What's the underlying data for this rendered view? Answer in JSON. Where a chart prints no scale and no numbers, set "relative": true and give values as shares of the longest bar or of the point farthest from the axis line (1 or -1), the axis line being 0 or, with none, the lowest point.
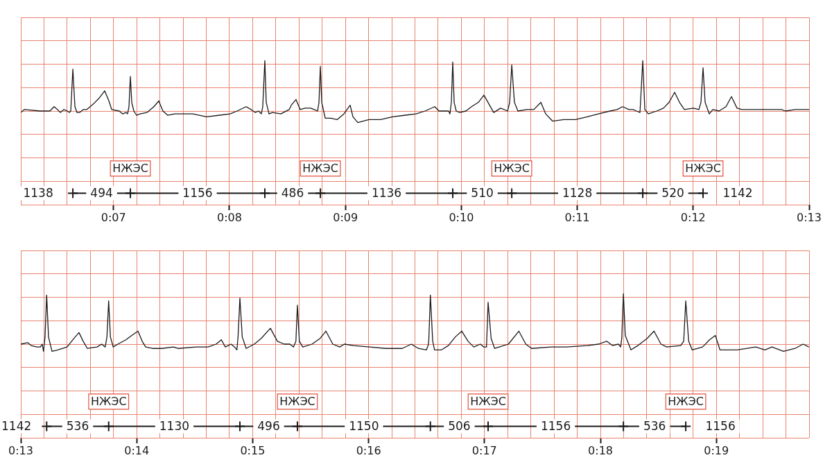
{
  "chart_data": [
    {
      "type": "line",
      "relative": true,
      "grid": true,
      "legend": false,
      "xlim": [
        6.2,
        13
      ],
      "xticks": [
        {
          "value": 6.2,
          "label": null
        },
        {
          "value": 6.4,
          "label": null
        },
        {
          "value": 6.6,
          "label": null
        },
        {
          "value": 6.8,
          "label": null
        },
        {
          "value": 7,
          "label": "0:07"
        },
        {
          "value": 7.2,
          "label": null
        },
        {
          "value": 7.4,
          "label": null
        },
        {
          "value": 7.6,
          "label": null
        },
        {
          "value": 7.8,
          "label": null
        },
        {
          "value": 8,
          "label": "0:08"
        },
        {
          "value": 8.2,
          "label": null
        },
        {
          "value": 8.4,
          "label": null
        },
        {
          "value": 8.6,
          "label": null
        },
        {
          "value": 8.8,
          "label": null
        },
        {
          "value": 9,
          "label": "0:09"
        },
        {
          "value": 9.2,
          "label": null
        },
        {
          "value": 9.4,
          "label": null
        },
        {
          "value": 9.6,
          "label": null
        },
        {
          "value": 9.8,
          "label": null
        },
        {
          "value": 10,
          "label": "0:10"
        },
        {
          "value": 10.2,
          "label": null
        },
        {
          "value": 10.4,
          "label": null
        },
        {
          "value": 10.6,
          "label": null
        },
        {
          "value": 10.8,
          "label": null
        },
        {
          "value": 11,
          "label": "0:11"
        },
        {
          "value": 11.2,
          "label": null
        },
        {
          "value": 11.4,
          "label": null
        },
        {
          "value": 11.6,
          "label": null
        },
        {
          "value": 11.8,
          "label": null
        },
        {
          "value": 12,
          "label": "0:12"
        },
        {
          "value": 12.2,
          "label": null
        },
        {
          "value": 12.4,
          "label": null
        },
        {
          "value": 12.6,
          "label": null
        },
        {
          "value": 12.8,
          "label": null
        },
        {
          "value": 13,
          "label": "0:13"
        }
      ],
      "series": [
        {
          "marker": "none",
          "color": "#1a1a1a",
          "x": [
            6.2,
            6.23,
            6.367,
            6.451,
            6.487,
            6.517,
            6.541,
            6.571,
            6.601,
            6.619,
            6.631,
            6.649,
            6.667,
            6.684,
            6.708,
            6.738,
            6.768,
            6.828,
            6.876,
            6.924,
            6.96,
            6.984,
            7.049,
            7.079,
            7.109,
            7.121,
            7.133,
            7.145,
            7.157,
            7.175,
            7.199,
            7.229,
            7.289,
            7.348,
            7.39,
            7.426,
            7.468,
            7.528,
            7.588,
            7.683,
            7.803,
            7.905,
            8.006,
            8.066,
            8.144,
            8.186,
            8.222,
            8.251,
            8.275,
            8.287,
            8.305,
            8.317,
            8.341,
            8.371,
            8.443,
            8.515,
            8.533,
            8.574,
            8.61,
            8.652,
            8.7,
            8.73,
            8.76,
            8.772,
            8.784,
            8.796,
            8.826,
            8.874,
            8.928,
            8.987,
            9.041,
            9.065,
            9.107,
            9.203,
            9.304,
            9.406,
            9.507,
            9.609,
            9.687,
            9.771,
            9.807,
            9.89,
            9.902,
            9.914,
            9.926,
            9.938,
            9.956,
            9.986,
            10.04,
            10.088,
            10.147,
            10.195,
            10.237,
            10.279,
            10.339,
            10.399,
            10.417,
            10.435,
            10.458,
            10.488,
            10.566,
            10.626,
            10.686,
            10.728,
            10.775,
            10.787,
            10.883,
            10.985,
            11.086,
            11.182,
            11.284,
            11.344,
            11.391,
            11.445,
            11.481,
            11.511,
            11.541,
            11.565,
            11.583,
            11.613,
            11.685,
            11.744,
            11.792,
            11.84,
            11.882,
            11.924,
            12.002,
            12.049,
            12.067,
            12.085,
            12.103,
            12.139,
            12.169,
            12.223,
            12.283,
            12.33,
            12.378,
            12.42,
            12.54,
            12.659,
            12.761,
            12.797,
            12.881,
            13
          ],
          "values": [
            0.64,
            0.66,
            0.65,
            0.65,
            0.68,
            0.66,
            0.64,
            0.66,
            0.65,
            0.64,
            0.65,
            0.94,
            0.68,
            0.64,
            0.64,
            0.66,
            0.66,
            0.7,
            0.74,
            0.79,
            0.72,
            0.66,
            0.65,
            0.63,
            0.64,
            0.63,
            0.68,
            0.89,
            0.71,
            0.65,
            0.62,
            0.63,
            0.64,
            0.68,
            0.72,
            0.65,
            0.62,
            0.63,
            0.63,
            0.63,
            0.61,
            0.62,
            0.63,
            0.65,
            0.68,
            0.66,
            0.64,
            0.65,
            0.63,
            0.68,
            1,
            0.71,
            0.63,
            0.64,
            0.63,
            0.66,
            0.69,
            0.73,
            0.66,
            0.67,
            0.67,
            0.66,
            0.65,
            0.71,
            0.96,
            0.71,
            0.6,
            0.6,
            0.59,
            0.63,
            0.69,
            0.61,
            0.57,
            0.59,
            0.59,
            0.61,
            0.62,
            0.63,
            0.65,
            0.68,
            0.65,
            0.65,
            0.63,
            0.71,
            0.99,
            0.71,
            0.65,
            0.64,
            0.65,
            0.68,
            0.71,
            0.76,
            0.7,
            0.64,
            0.67,
            0.65,
            0.71,
            0.97,
            0.71,
            0.65,
            0.66,
            0.66,
            0.71,
            0.63,
            0.59,
            0.58,
            0.59,
            0.59,
            0.61,
            0.63,
            0.65,
            0.66,
            0.68,
            0.66,
            0.66,
            0.65,
            0.64,
            1,
            0.66,
            0.63,
            0.65,
            0.67,
            0.71,
            0.78,
            0.71,
            0.66,
            0.67,
            0.66,
            0.71,
            0.95,
            0.71,
            0.63,
            0.66,
            0.65,
            0.68,
            0.75,
            0.67,
            0.66,
            0.66,
            0.66,
            0.66,
            0.65,
            0.66,
            0.66
          ]
        },
        {
          "marker": "cross",
          "color": "#1a1a1a",
          "x": [
            6.649,
            7.145,
            8.305,
            8.784,
            9.926,
            10.435,
            11.565,
            12.085
          ],
          "values": [
            0.08,
            0.08,
            0.08,
            0.08,
            0.08,
            0.08,
            0.08,
            0.08
          ]
        }
      ],
      "annotations": [
        "1138",
        "494",
        "1156",
        "486",
        "1136",
        "510",
        "1128",
        "520",
        "1142",
        "НЖЭС",
        "НЖЭС",
        "НЖЭС",
        "НЖЭС"
      ]
    },
    {
      "type": "line",
      "relative": true,
      "grid": true,
      "legend": false,
      "xlim": [
        13,
        19.8
      ],
      "xticks": [
        {
          "value": 13,
          "label": "0:13"
        },
        {
          "value": 13.2,
          "label": null
        },
        {
          "value": 13.4,
          "label": null
        },
        {
          "value": 13.6,
          "label": null
        },
        {
          "value": 13.8,
          "label": null
        },
        {
          "value": 14,
          "label": "0:14"
        },
        {
          "value": 14.2,
          "label": null
        },
        {
          "value": 14.4,
          "label": null
        },
        {
          "value": 14.6,
          "label": null
        },
        {
          "value": 14.8,
          "label": null
        },
        {
          "value": 15,
          "label": "0:15"
        },
        {
          "value": 15.2,
          "label": null
        },
        {
          "value": 15.4,
          "label": null
        },
        {
          "value": 15.6,
          "label": null
        },
        {
          "value": 15.8,
          "label": null
        },
        {
          "value": 16,
          "label": "0:16"
        },
        {
          "value": 16.2,
          "label": null
        },
        {
          "value": 16.4,
          "label": null
        },
        {
          "value": 16.6,
          "label": null
        },
        {
          "value": 16.8,
          "label": null
        },
        {
          "value": 17,
          "label": "0:17"
        },
        {
          "value": 17.2,
          "label": null
        },
        {
          "value": 17.4,
          "label": null
        },
        {
          "value": 17.6,
          "label": null
        },
        {
          "value": 17.8,
          "label": null
        },
        {
          "value": 18,
          "label": "0:18"
        },
        {
          "value": 18.2,
          "label": null
        },
        {
          "value": 18.4,
          "label": null
        },
        {
          "value": 18.6,
          "label": null
        },
        {
          "value": 18.8,
          "label": null
        },
        {
          "value": 19,
          "label": "0:19"
        },
        {
          "value": 19.2,
          "label": null
        },
        {
          "value": 19.4,
          "label": null
        },
        {
          "value": 19.6,
          "label": null
        },
        {
          "value": 19.8,
          "label": null
        }
      ],
      "series": [
        {
          "marker": "none",
          "color": "#1a1a1a",
          "x": [
            13,
            13.06,
            13.09,
            13.139,
            13.169,
            13.185,
            13.196,
            13.209,
            13.223,
            13.239,
            13.269,
            13.319,
            13.399,
            13.459,
            13.502,
            13.538,
            13.574,
            13.658,
            13.698,
            13.728,
            13.743,
            13.758,
            13.773,
            13.797,
            13.837,
            13.907,
            13.957,
            14.011,
            14.047,
            14.077,
            14.136,
            14.216,
            14.316,
            14.356,
            14.515,
            14.615,
            14.685,
            14.73,
            14.764,
            14.814,
            14.844,
            14.864,
            14.874,
            14.89,
            14.91,
            14.944,
            15.014,
            15.074,
            15.153,
            15.213,
            15.273,
            15.322,
            15.352,
            15.373,
            15.386,
            15.403,
            15.432,
            15.512,
            15.582,
            15.632,
            15.691,
            15.751,
            15.791,
            15.871,
            16.01,
            16.15,
            16.29,
            16.369,
            16.429,
            16.499,
            16.513,
            16.519,
            16.533,
            16.553,
            16.569,
            16.629,
            16.688,
            16.748,
            16.804,
            16.858,
            16.907,
            16.964,
            16.994,
            17.017,
            17.031,
            17.057,
            17.087,
            17.127,
            17.206,
            17.296,
            17.356,
            17.406,
            17.575,
            17.605,
            17.705,
            17.885,
            17.984,
            18.054,
            18.104,
            18.154,
            18.174,
            18.184,
            18.198,
            18.214,
            18.263,
            18.323,
            18.403,
            18.462,
            18.522,
            18.572,
            18.692,
            18.718,
            18.736,
            18.761,
            18.791,
            18.881,
            18.941,
            18.991,
            19.031,
            19.18,
            19.34,
            19.419,
            19.479,
            19.579,
            19.679,
            19.748,
            19.798
          ],
          "values": [
            0.65,
            0.66,
            0.64,
            0.63,
            0.63,
            0.65,
            0.6,
            0.7,
            0.99,
            0.7,
            0.6,
            0.61,
            0.63,
            0.69,
            0.73,
            0.67,
            0.62,
            0.63,
            0.65,
            0.63,
            0.7,
            0.95,
            0.7,
            0.63,
            0.65,
            0.68,
            0.71,
            0.74,
            0.67,
            0.63,
            0.62,
            0.62,
            0.63,
            0.62,
            0.63,
            0.63,
            0.65,
            0.68,
            0.63,
            0.65,
            0.63,
            0.61,
            0.7,
            0.97,
            0.7,
            0.62,
            0.65,
            0.69,
            0.76,
            0.67,
            0.65,
            0.65,
            0.63,
            0.67,
            0.92,
            0.67,
            0.63,
            0.65,
            0.69,
            0.74,
            0.65,
            0.63,
            0.65,
            0.64,
            0.63,
            0.62,
            0.62,
            0.65,
            0.62,
            0.61,
            0.64,
            0.67,
            0.99,
            0.67,
            0.61,
            0.61,
            0.64,
            0.7,
            0.74,
            0.67,
            0.63,
            0.65,
            0.63,
            0.63,
            0.94,
            0.69,
            0.62,
            0.63,
            0.65,
            0.74,
            0.65,
            0.62,
            0.63,
            0.63,
            0.63,
            0.64,
            0.65,
            0.67,
            0.64,
            0.65,
            0.63,
            0.69,
            1,
            0.71,
            0.61,
            0.64,
            0.69,
            0.74,
            0.65,
            0.63,
            0.64,
            0.67,
            0.95,
            0.67,
            0.61,
            0.63,
            0.68,
            0.71,
            0.61,
            0.61,
            0.63,
            0.61,
            0.63,
            0.6,
            0.62,
            0.65,
            0.63
          ]
        },
        {
          "marker": "cross",
          "color": "#1a1a1a",
          "x": [
            13.223,
            13.758,
            14.89,
            15.386,
            16.533,
            17.031,
            18.198,
            18.736
          ],
          "values": [
            0.08,
            0.08,
            0.08,
            0.08,
            0.08,
            0.08,
            0.08,
            0.08
          ]
        }
      ],
      "annotations": [
        "1142",
        "536",
        "1130",
        "496",
        "1150",
        "506",
        "1156",
        "536",
        "1156",
        "НЖЭС",
        "НЖЭС",
        "НЖЭС",
        "НЖЭС"
      ]
    }
  ]
}
